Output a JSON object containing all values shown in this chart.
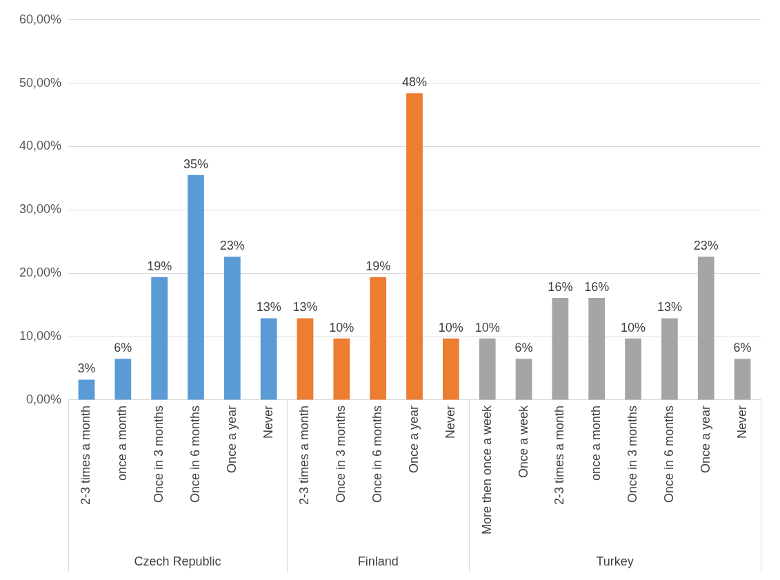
{
  "chart_data": {
    "type": "bar",
    "categories": [
      "2-3 times a month",
      "once a month",
      "Once in 3 months",
      "Once in 6 months",
      "Once a year",
      "Never",
      "2-3 times a month",
      "Once in 3 months",
      "Once in 6 months",
      "Once a year",
      "Never",
      "More then once a week",
      "Once a week",
      "2-3 times a month",
      "once a month",
      "Once in 3 months",
      "Once in 6 months",
      "Once a year",
      "Never"
    ],
    "series": [
      {
        "color": "#5b9bd5",
        "values": [
          3.2,
          6.5,
          19.4,
          35.5,
          22.6,
          12.9,
          null,
          null,
          null,
          null,
          null,
          null,
          null,
          null,
          null,
          null,
          null,
          null,
          null
        ],
        "value_labels": [
          "3%",
          "6%",
          "19%",
          "35%",
          "23%",
          "13%",
          null,
          null,
          null,
          null,
          null,
          null,
          null,
          null,
          null,
          null,
          null,
          null,
          null
        ]
      },
      {
        "color": "#ed7d31",
        "values": [
          null,
          null,
          null,
          null,
          null,
          null,
          12.9,
          9.7,
          19.4,
          48.4,
          9.7,
          null,
          null,
          null,
          null,
          null,
          null,
          null,
          null
        ],
        "value_labels": [
          null,
          null,
          null,
          null,
          null,
          null,
          "13%",
          "10%",
          "19%",
          "48%",
          "10%",
          null,
          null,
          null,
          null,
          null,
          null,
          null,
          null
        ]
      },
      {
        "color": "#a5a5a5",
        "values": [
          null,
          null,
          null,
          null,
          null,
          null,
          null,
          null,
          null,
          null,
          null,
          9.7,
          6.5,
          16.1,
          16.1,
          9.7,
          12.9,
          22.6,
          6.5
        ],
        "value_labels": [
          null,
          null,
          null,
          null,
          null,
          null,
          null,
          null,
          null,
          null,
          null,
          "10%",
          "6%",
          "16%",
          "16%",
          "10%",
          "13%",
          "23%",
          "6%"
        ]
      }
    ],
    "ylim": [
      0,
      60
    ],
    "yticks": [
      {
        "value": 0,
        "label": "0,00%"
      },
      {
        "value": 10,
        "label": "10,00%"
      },
      {
        "value": 20,
        "label": "20,00%"
      },
      {
        "value": 30,
        "label": "30,00%"
      },
      {
        "value": 40,
        "label": "40,00%"
      },
      {
        "value": 50,
        "label": "50,00%"
      },
      {
        "value": 60,
        "label": "60,00%"
      }
    ],
    "annotations": [
      "Czech Republic",
      "Finland",
      "Turkey"
    ],
    "grid": "y",
    "legend": false
  }
}
